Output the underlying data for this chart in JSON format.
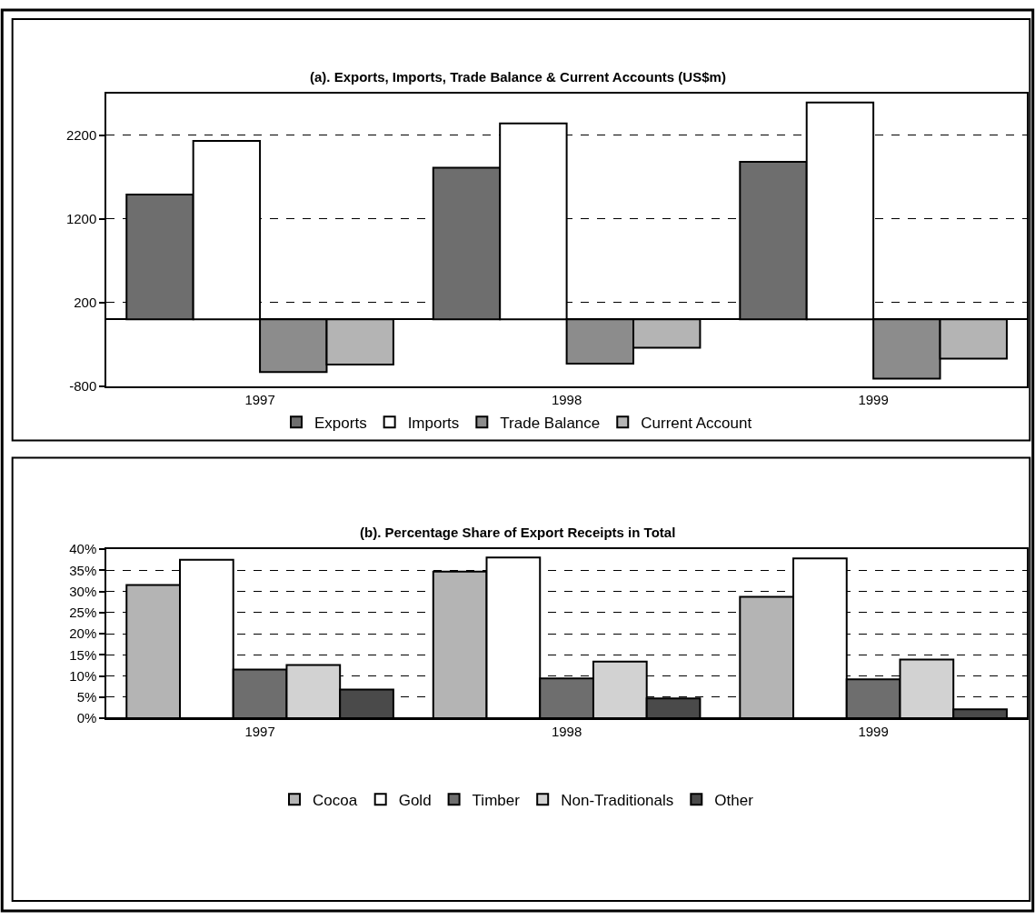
{
  "chart_data": [
    {
      "type": "bar",
      "title": "(a). Exports, Imports, Trade Balance & Current Accounts (US$m)",
      "categories": [
        "1997",
        "1998",
        "1999"
      ],
      "series": [
        {
          "name": "Exports",
          "color": "#6e6e6e",
          "values": [
            1490,
            1810,
            1880
          ]
        },
        {
          "name": "Imports",
          "color": "#ffffff",
          "values": [
            2130,
            2340,
            2590
          ]
        },
        {
          "name": "Trade Balance",
          "color": "#8c8c8c",
          "values": [
            -630,
            -530,
            -710
          ]
        },
        {
          "name": "Current Account",
          "color": "#b4b4b4",
          "values": [
            -540,
            -340,
            -470
          ]
        }
      ],
      "ylim": [
        -800,
        2700
      ],
      "yticks": [
        -800,
        200,
        1200,
        2200
      ],
      "grid": "y",
      "legend": "bottom"
    },
    {
      "type": "bar",
      "title": "(b). Percentage Share of Export Receipts in Total",
      "categories": [
        "1997",
        "1998",
        "1999"
      ],
      "series": [
        {
          "name": "Cocoa",
          "color": "#b4b4b4",
          "values": [
            31.5,
            34.7,
            28.7
          ]
        },
        {
          "name": "Gold",
          "color": "#ffffff",
          "values": [
            37.5,
            38.0,
            37.8
          ]
        },
        {
          "name": "Timber",
          "color": "#6e6e6e",
          "values": [
            11.5,
            9.4,
            9.2
          ]
        },
        {
          "name": "Non-Traditionals",
          "color": "#d2d2d2",
          "values": [
            12.6,
            13.4,
            13.9
          ]
        },
        {
          "name": "Other",
          "color": "#4a4a4a",
          "values": [
            6.8,
            4.7,
            2.1
          ]
        }
      ],
      "ylim": [
        0,
        40
      ],
      "yticks": [
        {
          "value": 0,
          "label": "0%"
        },
        {
          "value": 5,
          "label": "5%"
        },
        {
          "value": 10,
          "label": "10%"
        },
        {
          "value": 15,
          "label": "15%"
        },
        {
          "value": 20,
          "label": "20%"
        },
        {
          "value": 25,
          "label": "25%"
        },
        {
          "value": 30,
          "label": "30%"
        },
        {
          "value": 35,
          "label": "35%"
        },
        {
          "value": 40,
          "label": "40%"
        }
      ],
      "grid": "y",
      "legend": "bottom"
    }
  ]
}
